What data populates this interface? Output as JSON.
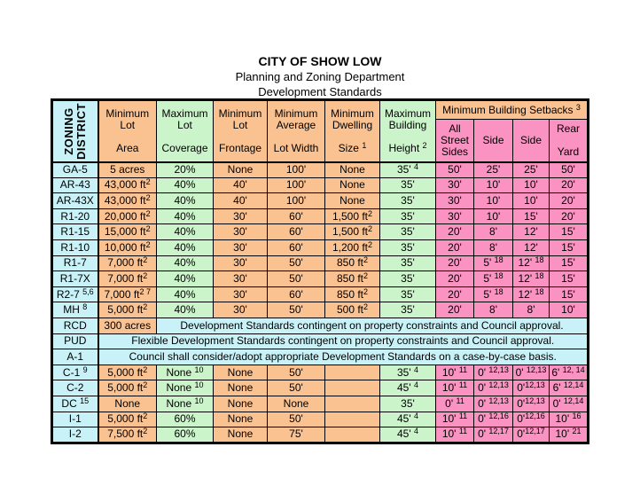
{
  "title": {
    "line1": "CITY OF SHOW LOW",
    "line2": "Planning and Zoning Department",
    "line3": "Development Standards"
  },
  "colors": {
    "orange": "#FAC191",
    "green": "#CCF4CB",
    "cyan": "#C8F2F7",
    "pink": "#FA92C2"
  },
  "table": {
    "corner_header": "ZONING\nDISTRICT",
    "columns": [
      {
        "label": "Minimum\nLot\n\nArea"
      },
      {
        "label": "Maximum\nLot\n\nCoverage"
      },
      {
        "label": "Minimum\nLot\n\nFrontage"
      },
      {
        "label": "Minimum\nAverage\n\nLot Width"
      },
      {
        "label": "Minimum\nDwelling\n\nSize ^1^"
      },
      {
        "label": "Maximum\nBuilding\n\nHeight ^2^"
      }
    ],
    "setbacks_group_label": "Minimum Building Setbacks ^3^",
    "setback_columns": [
      "All\nStreet\nSides",
      "Side",
      "Side",
      "Rear\n\nYard"
    ],
    "column_bg": [
      "orange",
      "green",
      "orange",
      "orange",
      "orange",
      "green",
      "pink",
      "pink",
      "pink",
      "pink"
    ],
    "rows": [
      {
        "label": "GA-5",
        "cells": [
          "5 acres",
          "20%",
          "None",
          "100'",
          "None",
          "35' ^4^",
          "50'",
          "25'",
          "25'",
          "50'"
        ]
      },
      {
        "label": "AR-43",
        "cells": [
          "43,000 ft^2^",
          "40%",
          "40'",
          "100'",
          "None",
          "35'",
          "30'",
          "10'",
          "10'",
          "20'"
        ]
      },
      {
        "label": "AR-43X",
        "cells": [
          "43,000 ft^2^",
          "40%",
          "40'",
          "100'",
          "None",
          "35'",
          "30'",
          "10'",
          "10'",
          "20'"
        ]
      },
      {
        "label": "R1-20",
        "cells": [
          "20,000 ft^2^",
          "40%",
          "30'",
          "60'",
          "1,500 ft^2^",
          "35'",
          "30'",
          "10'",
          "15'",
          "20'"
        ]
      },
      {
        "label": "R1-15",
        "cells": [
          "15,000 ft^2^",
          "40%",
          "30'",
          "60'",
          "1,500 ft^2^",
          "35'",
          "20'",
          "8'",
          "12'",
          "15'"
        ]
      },
      {
        "label": "R1-10",
        "cells": [
          "10,000 ft^2^",
          "40%",
          "30'",
          "60'",
          "1,200 ft^2^",
          "35'",
          "20'",
          "8'",
          "12'",
          "15'"
        ]
      },
      {
        "label": "R1-7",
        "cells": [
          "7,000 ft^2^",
          "40%",
          "30'",
          "50'",
          "850 ft^2^",
          "35'",
          "20'",
          "5' ^18^",
          "12' ^18^",
          "15'"
        ]
      },
      {
        "label": "R1-7X",
        "cells": [
          "7,000 ft^2^",
          "40%",
          "30'",
          "50'",
          "850 ft^2^",
          "35'",
          "20'",
          "5' ^18^",
          "12' ^18^",
          "15'"
        ]
      },
      {
        "label": "R2-7 ^5,6^",
        "cells": [
          "7,000 ft^2 7^",
          "40%",
          "30'",
          "60'",
          "850 ft^2^",
          "35'",
          "20'",
          "5' ^18^",
          "12' ^18^",
          "15'"
        ]
      },
      {
        "label": "MH ^8^",
        "cells": [
          "5,000 ft^2^",
          "40%",
          "30'",
          "50'",
          "500 ft^2^",
          "35'",
          "20'",
          "8'",
          "8'",
          "10'"
        ]
      },
      {
        "label": "RCD",
        "area": "300 acres",
        "note": "Development Standards contingent on property constraints and Council approval."
      },
      {
        "label": "PUD",
        "note": "Flexible Development Standards contingent on property constraints and Council approval."
      },
      {
        "label": "A-1",
        "note": "Council shall consider/adopt appropriate Development Standards on a case-by-case basis."
      },
      {
        "label": "C-1 ^9^",
        "cells": [
          "5,000 ft^2^",
          "None ^10^",
          "None",
          "50'",
          "",
          "35' ^4^",
          "10' ^11^",
          "0' ^12,13^",
          "0' ^12,13^",
          "6' ^12, 14^"
        ]
      },
      {
        "label": "C-2",
        "cells": [
          "5,000 ft^2^",
          "None ^10^",
          "None",
          "50'",
          "",
          "45' ^4^",
          "10' ^11^",
          "0' ^12,13^",
          "0'^12,13^",
          "6' ^12,14^"
        ]
      },
      {
        "label": "DC ^15^",
        "cells": [
          "None",
          "None ^10^",
          "None",
          "None",
          "",
          "35'",
          "0' ^11^",
          "0' ^12,13^",
          "0'^12,13^",
          "0' ^12,14^"
        ]
      },
      {
        "label": "I-1",
        "cells": [
          "5,000 ft^2^",
          "60%",
          "None",
          "50'",
          "",
          "45' ^4^",
          "10' ^11^",
          "0' ^12,16^",
          "0'^12,16^",
          "10' ^16^"
        ]
      },
      {
        "label": "I-2",
        "cells": [
          "7,500 ft^2^",
          "60%",
          "None",
          "75'",
          "",
          "45' ^4^",
          "10' ^11^",
          "0' ^12,17^",
          "0'^12,17^",
          "10' ^21^"
        ]
      }
    ]
  }
}
